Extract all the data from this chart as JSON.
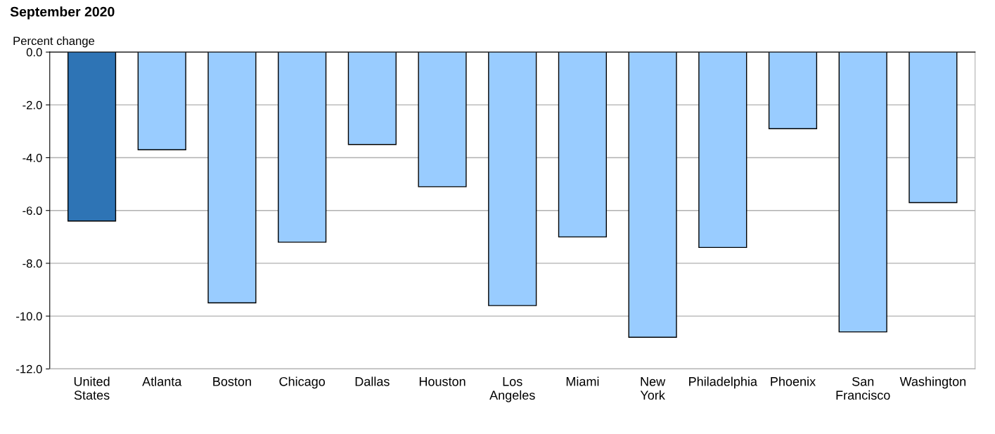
{
  "chart_data": {
    "type": "bar",
    "title": "September 2020",
    "ylabel": "Percent change",
    "categories": [
      "United\nStates",
      "Atlanta",
      "Boston",
      "Chicago",
      "Dallas",
      "Houston",
      "Los\nAngeles",
      "Miami",
      "New\nYork",
      "Philadelphia",
      "Phoenix",
      "San\nFrancisco",
      "Washington"
    ],
    "values": [
      -6.4,
      -3.7,
      -9.5,
      -7.2,
      -3.5,
      -5.1,
      -9.6,
      -7.0,
      -10.8,
      -7.4,
      -2.9,
      -10.6,
      -5.7
    ],
    "colors": [
      "#2e74b5",
      "#99ccff",
      "#99ccff",
      "#99ccff",
      "#99ccff",
      "#99ccff",
      "#99ccff",
      "#99ccff",
      "#99ccff",
      "#99ccff",
      "#99ccff",
      "#99ccff",
      "#99ccff"
    ],
    "ylim": [
      -12.0,
      0.0
    ],
    "yticks": [
      {
        "value": 0,
        "label": "0.0"
      },
      {
        "value": -2,
        "label": "-2.0"
      },
      {
        "value": -4,
        "label": "-4.0"
      },
      {
        "value": -6,
        "label": "-6.0"
      },
      {
        "value": -8,
        "label": "-8.0"
      },
      {
        "value": -10,
        "label": "-10.0"
      },
      {
        "value": -12,
        "label": "-12.0"
      }
    ],
    "grid": "y"
  }
}
